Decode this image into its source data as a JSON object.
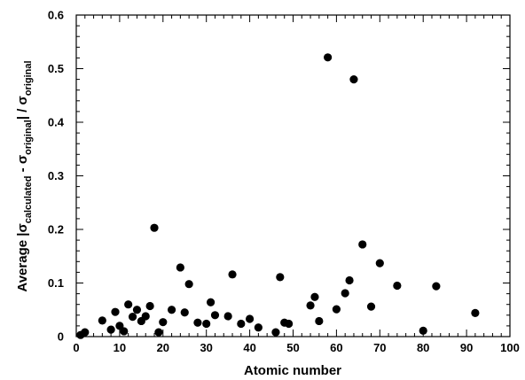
{
  "chart_data": {
    "type": "scatter",
    "title": "",
    "xlabel": "Atomic number",
    "ylabel": {
      "prefix": "Average |",
      "sym1": "σ",
      "sub1": "calculated",
      "mid": " - ",
      "sym2": "σ",
      "sub2": "original",
      "mid2": "| / ",
      "sym3": "σ",
      "sub3": "original"
    },
    "xlim": [
      0,
      100
    ],
    "ylim": [
      0,
      0.6
    ],
    "xticks": [
      0,
      10,
      20,
      30,
      40,
      50,
      60,
      70,
      80,
      90,
      100
    ],
    "xtick_labels": [
      "0",
      "10",
      "20",
      "30",
      "40",
      "50",
      "60",
      "70",
      "80",
      "90",
      "100"
    ],
    "yticks": [
      0,
      0.1,
      0.2,
      0.3,
      0.4,
      0.5,
      0.6
    ],
    "ytick_labels": [
      "0",
      "0.1",
      "0.2",
      "0.3",
      "0.4",
      "0.5",
      "0.6"
    ],
    "grid": false,
    "marker_color": "#000000",
    "points": [
      {
        "x": 1,
        "y": 0.003
      },
      {
        "x": 2,
        "y": 0.008
      },
      {
        "x": 6,
        "y": 0.03
      },
      {
        "x": 8,
        "y": 0.013
      },
      {
        "x": 9,
        "y": 0.046
      },
      {
        "x": 10,
        "y": 0.02
      },
      {
        "x": 11,
        "y": 0.01
      },
      {
        "x": 12,
        "y": 0.06
      },
      {
        "x": 13,
        "y": 0.037
      },
      {
        "x": 14,
        "y": 0.05
      },
      {
        "x": 15,
        "y": 0.029
      },
      {
        "x": 16,
        "y": 0.038
      },
      {
        "x": 17,
        "y": 0.057
      },
      {
        "x": 18,
        "y": 0.203
      },
      {
        "x": 19,
        "y": 0.008
      },
      {
        "x": 20,
        "y": 0.027
      },
      {
        "x": 22,
        "y": 0.05
      },
      {
        "x": 24,
        "y": 0.129
      },
      {
        "x": 25,
        "y": 0.045
      },
      {
        "x": 26,
        "y": 0.098
      },
      {
        "x": 28,
        "y": 0.026
      },
      {
        "x": 30,
        "y": 0.024
      },
      {
        "x": 31,
        "y": 0.064
      },
      {
        "x": 32,
        "y": 0.04
      },
      {
        "x": 35,
        "y": 0.038
      },
      {
        "x": 36,
        "y": 0.116
      },
      {
        "x": 38,
        "y": 0.024
      },
      {
        "x": 40,
        "y": 0.033
      },
      {
        "x": 42,
        "y": 0.017
      },
      {
        "x": 46,
        "y": 0.008
      },
      {
        "x": 47,
        "y": 0.111
      },
      {
        "x": 48,
        "y": 0.026
      },
      {
        "x": 49,
        "y": 0.024
      },
      {
        "x": 54,
        "y": 0.058
      },
      {
        "x": 55,
        "y": 0.074
      },
      {
        "x": 56,
        "y": 0.029
      },
      {
        "x": 58,
        "y": 0.521
      },
      {
        "x": 60,
        "y": 0.051
      },
      {
        "x": 62,
        "y": 0.081
      },
      {
        "x": 63,
        "y": 0.105
      },
      {
        "x": 64,
        "y": 0.48
      },
      {
        "x": 66,
        "y": 0.172
      },
      {
        "x": 68,
        "y": 0.056
      },
      {
        "x": 70,
        "y": 0.137
      },
      {
        "x": 74,
        "y": 0.095
      },
      {
        "x": 80,
        "y": 0.011
      },
      {
        "x": 83,
        "y": 0.094
      },
      {
        "x": 92,
        "y": 0.044
      }
    ]
  }
}
